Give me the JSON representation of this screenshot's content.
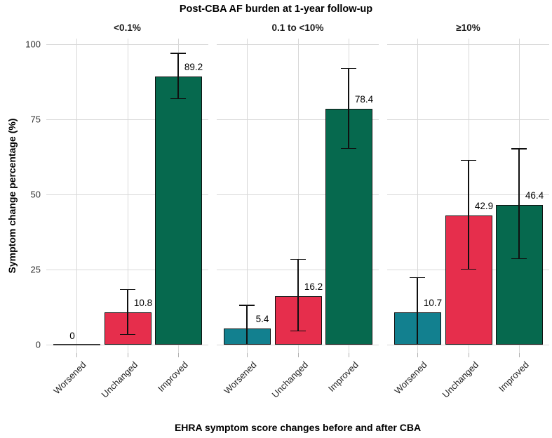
{
  "chart_data": {
    "type": "bar",
    "title": "Post-CBA AF burden at 1-year follow-up",
    "xlabel": "EHRA symptom score changes before and after CBA",
    "ylabel": "Symptom change percentage (%)",
    "ylim": [
      0,
      100
    ],
    "yticks": [
      0,
      25,
      50,
      75,
      100
    ],
    "categories": [
      "Worsened",
      "Unchanged",
      "Improved"
    ],
    "bar_colors": [
      "#12808F",
      "#E62E4C",
      "#06694E"
    ],
    "grid_color": "#d8d8d8",
    "legend_position": "none",
    "panels": [
      {
        "label": "<0.1%",
        "values": [
          0,
          10.8,
          89.2
        ],
        "error_low": [
          null,
          3.3,
          81.8
        ],
        "error_high": [
          null,
          18.2,
          96.8
        ]
      },
      {
        "label": "0.1 to <10%",
        "values": [
          5.4,
          16.2,
          78.4
        ],
        "error_low": [
          0,
          4.4,
          65.2
        ],
        "error_high": [
          12.9,
          28.3,
          91.8
        ]
      },
      {
        "label": "≥10%",
        "values": [
          10.7,
          42.9,
          46.4
        ],
        "error_low": [
          0,
          25.0,
          28.5
        ],
        "error_high": [
          22.2,
          61.2,
          65.0
        ]
      }
    ]
  }
}
